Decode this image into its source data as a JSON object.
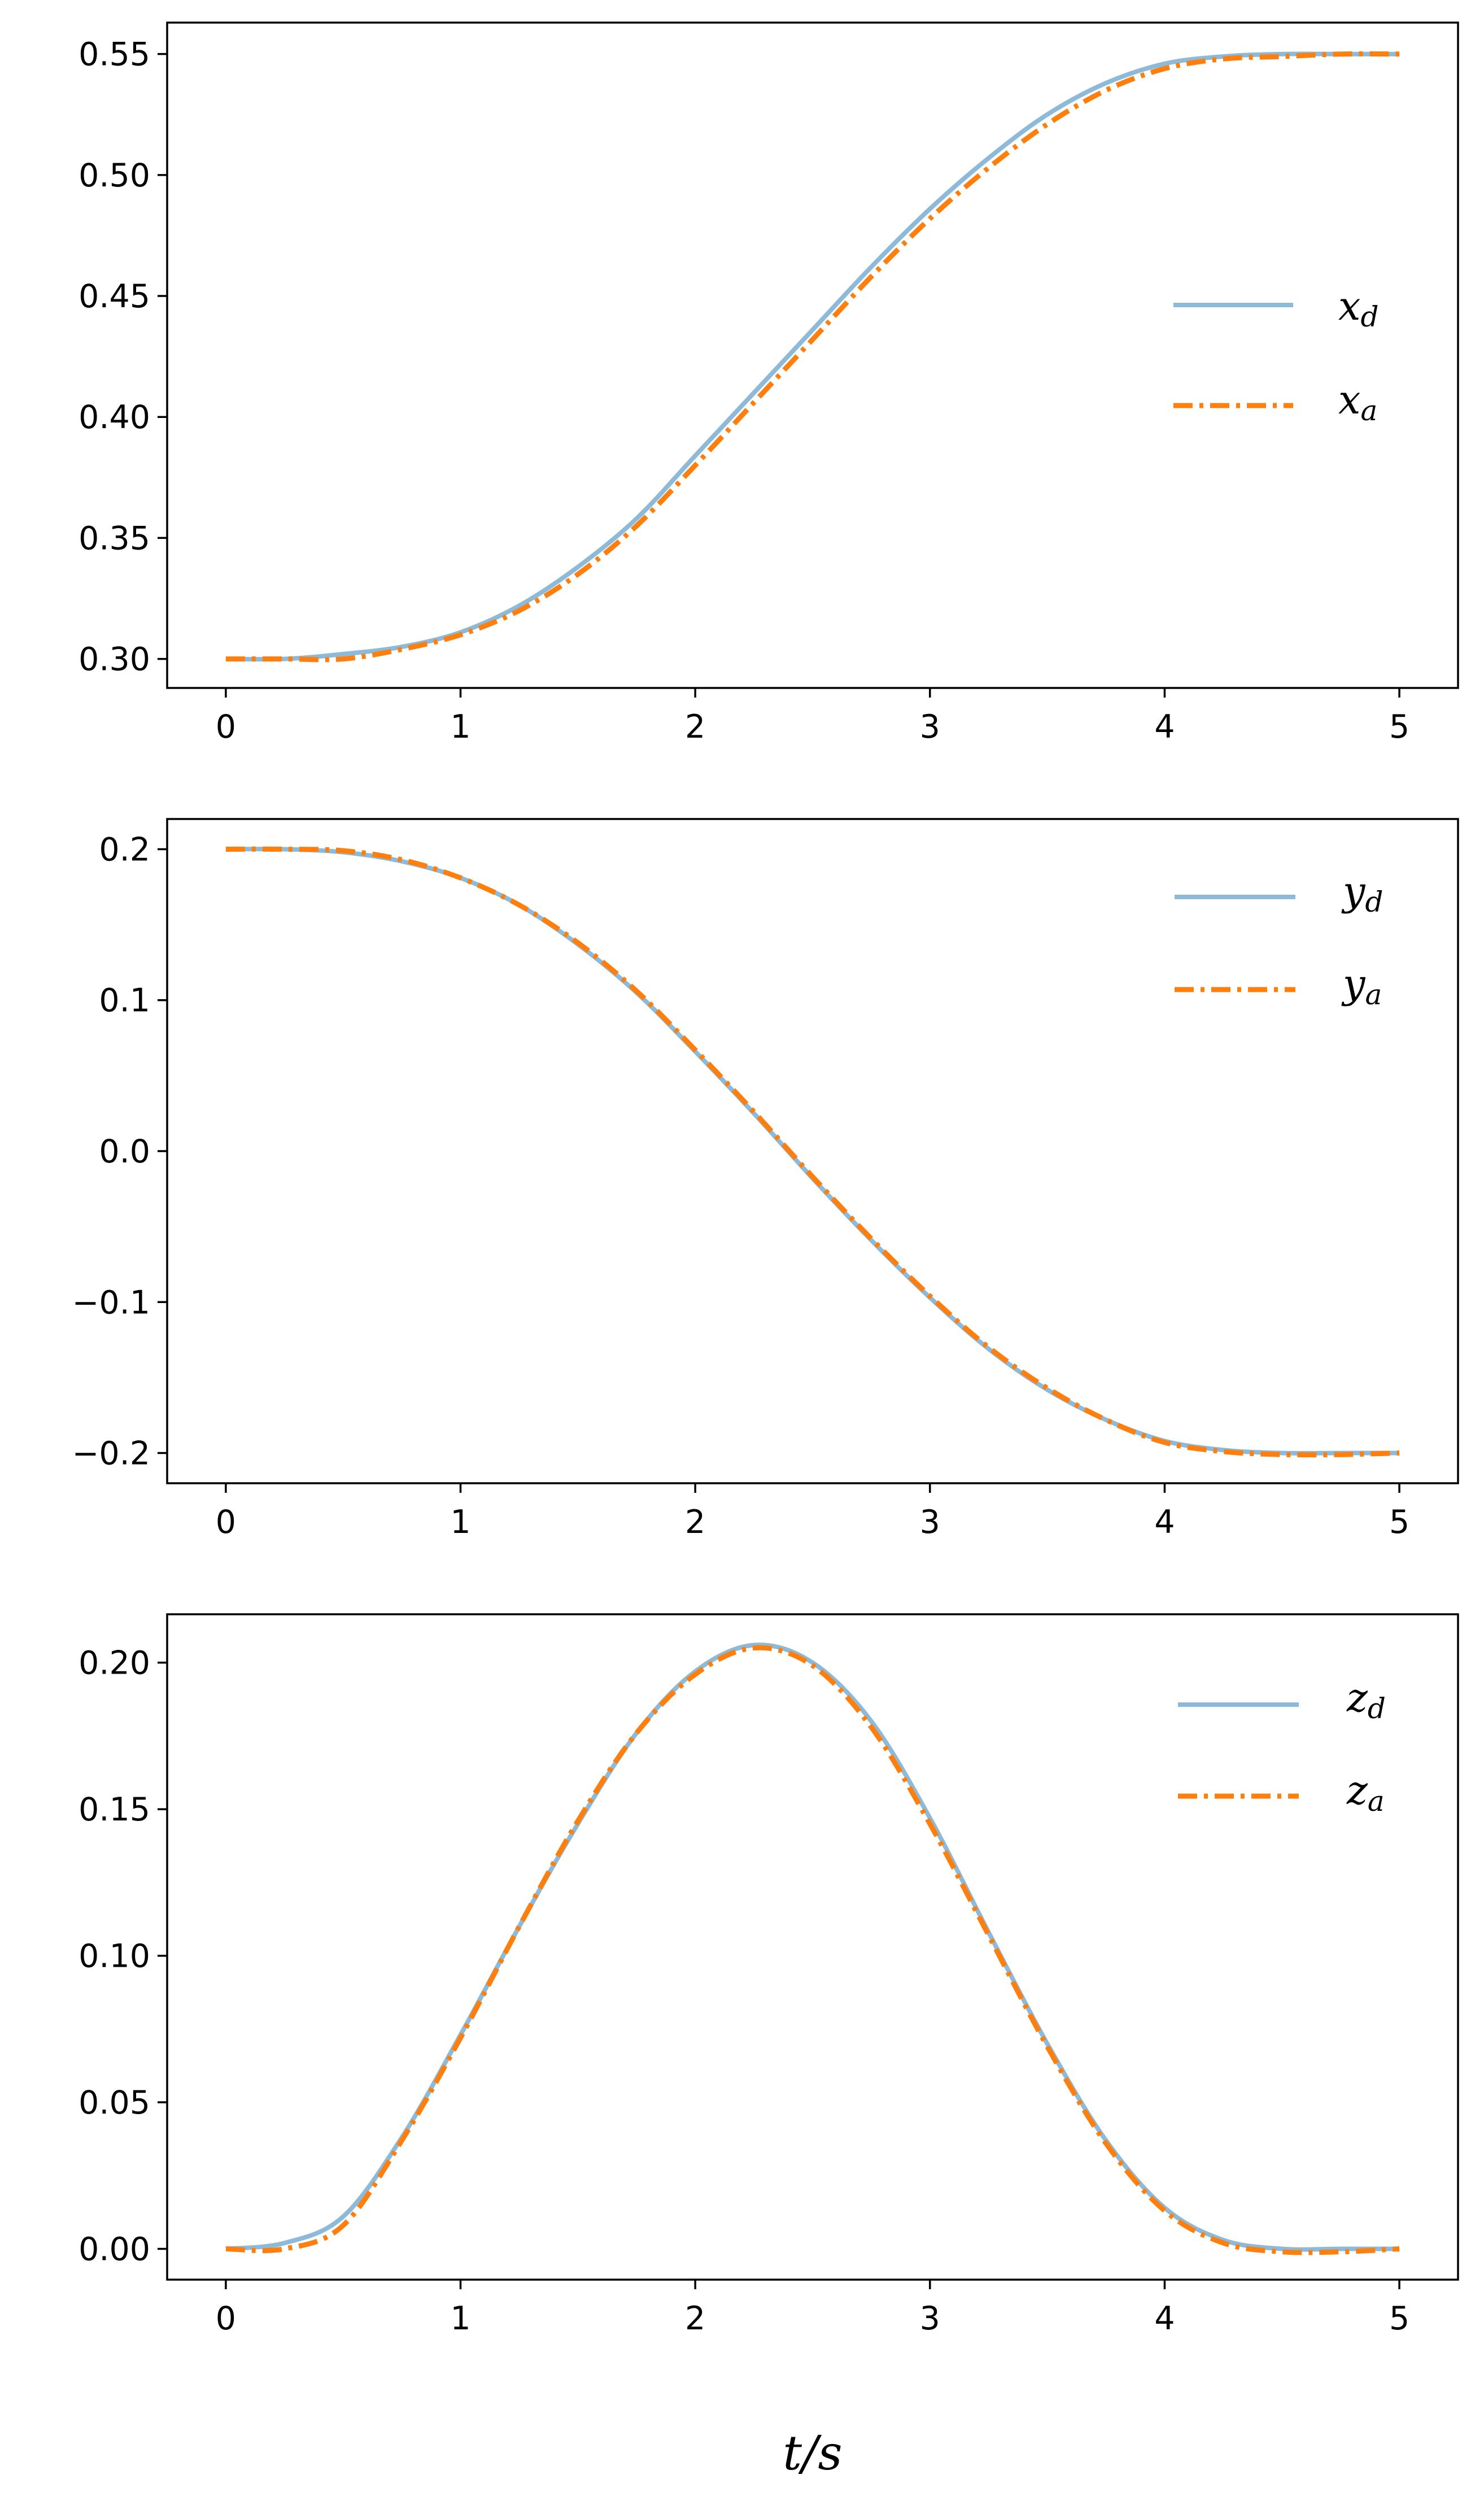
{
  "colors": {
    "desired": "#8ebad9",
    "actual": "#ff7f0e",
    "axes": "#000000",
    "background": "#ffffff"
  },
  "chart_data": [
    {
      "type": "line",
      "xlim": [
        -0.25,
        5.25
      ],
      "ylim": [
        0.288,
        0.563
      ],
      "xticks": [
        "0",
        "1",
        "2",
        "3",
        "4",
        "5"
      ],
      "yticks": [
        "0.30",
        "0.35",
        "0.40",
        "0.45",
        "0.50",
        "0.55"
      ],
      "legend_position": "center-right",
      "grid": false,
      "series": [
        {
          "name": "x",
          "subscript": "d",
          "style": "solid",
          "x": [
            0,
            0.25,
            0.5,
            0.75,
            1,
            1.25,
            1.5,
            1.75,
            2,
            2.25,
            2.5,
            2.75,
            3,
            3.25,
            3.5,
            3.75,
            4,
            4.25,
            4.5,
            4.75,
            5
          ],
          "y": [
            0.3,
            0.3,
            0.302,
            0.305,
            0.311,
            0.322,
            0.338,
            0.358,
            0.384,
            0.41,
            0.436,
            0.462,
            0.486,
            0.507,
            0.525,
            0.538,
            0.546,
            0.549,
            0.55,
            0.55,
            0.55
          ]
        },
        {
          "name": "x",
          "subscript": "a",
          "style": "dashdot",
          "x": [
            0,
            0.25,
            0.5,
            0.75,
            1,
            1.25,
            1.5,
            1.75,
            2,
            2.25,
            2.5,
            2.75,
            3,
            3.25,
            3.5,
            3.75,
            4,
            4.25,
            4.5,
            4.75,
            5
          ],
          "y": [
            0.3,
            0.3,
            0.3,
            0.304,
            0.31,
            0.32,
            0.335,
            0.355,
            0.38,
            0.406,
            0.432,
            0.458,
            0.482,
            0.503,
            0.521,
            0.535,
            0.544,
            0.548,
            0.549,
            0.55,
            0.55
          ]
        }
      ]
    },
    {
      "type": "line",
      "xlim": [
        -0.25,
        5.25
      ],
      "ylim": [
        -0.22,
        0.22
      ],
      "xticks": [
        "0",
        "1",
        "2",
        "3",
        "4",
        "5"
      ],
      "yticks": [
        "0.2",
        "0.1",
        "0.0",
        "−0.1",
        "−0.2"
      ],
      "legend_position": "top-right",
      "grid": false,
      "series": [
        {
          "name": "y",
          "subscript": "d",
          "style": "solid",
          "x": [
            0,
            0.25,
            0.5,
            0.75,
            1,
            1.25,
            1.5,
            1.75,
            2,
            2.25,
            2.5,
            2.75,
            3,
            3.25,
            3.5,
            3.75,
            4,
            4.25,
            4.5,
            4.75,
            5
          ],
          "y": [
            0.2,
            0.2,
            0.198,
            0.192,
            0.181,
            0.163,
            0.137,
            0.105,
            0.066,
            0.025,
            -0.018,
            -0.059,
            -0.097,
            -0.131,
            -0.158,
            -0.178,
            -0.192,
            -0.198,
            -0.2,
            -0.2,
            -0.2
          ]
        },
        {
          "name": "y",
          "subscript": "a",
          "style": "dashdot",
          "x": [
            0,
            0.25,
            0.5,
            0.75,
            1,
            1.25,
            1.5,
            1.75,
            2,
            2.25,
            2.5,
            2.75,
            3,
            3.25,
            3.5,
            3.75,
            4,
            4.25,
            4.5,
            4.75,
            5
          ],
          "y": [
            0.2,
            0.2,
            0.199,
            0.193,
            0.181,
            0.163,
            0.138,
            0.106,
            0.067,
            0.026,
            -0.017,
            -0.058,
            -0.096,
            -0.13,
            -0.157,
            -0.178,
            -0.193,
            -0.199,
            -0.201,
            -0.201,
            -0.2
          ]
        }
      ]
    },
    {
      "type": "line",
      "xlim": [
        -0.25,
        5.25
      ],
      "ylim": [
        -0.0105,
        0.2165
      ],
      "xticks": [
        "0",
        "1",
        "2",
        "3",
        "4",
        "5"
      ],
      "yticks": [
        "0.00",
        "0.05",
        "0.10",
        "0.15",
        "0.20"
      ],
      "legend_position": "top-right",
      "grid": false,
      "xlabel": "t/s",
      "series": [
        {
          "name": "z",
          "subscript": "d",
          "style": "solid",
          "x": [
            0,
            0.25,
            0.5,
            0.75,
            1,
            1.25,
            1.5,
            1.75,
            2,
            2.25,
            2.5,
            2.75,
            3,
            3.25,
            3.5,
            3.75,
            4,
            4.25,
            4.5,
            4.75,
            5
          ],
          "y": [
            0,
            0.002,
            0.011,
            0.038,
            0.073,
            0.11,
            0.145,
            0.176,
            0.197,
            0.206,
            0.2,
            0.18,
            0.147,
            0.108,
            0.07,
            0.037,
            0.014,
            0.003,
            0,
            0,
            0
          ]
        },
        {
          "name": "z",
          "subscript": "a",
          "style": "dashdot",
          "x": [
            0,
            0.25,
            0.5,
            0.75,
            1,
            1.25,
            1.5,
            1.75,
            2,
            2.25,
            2.5,
            2.75,
            3,
            3.25,
            3.5,
            3.75,
            4,
            4.25,
            4.5,
            4.75,
            5
          ],
          "y": [
            0,
            0,
            0.008,
            0.037,
            0.072,
            0.11,
            0.146,
            0.176,
            0.196,
            0.205,
            0.199,
            0.178,
            0.145,
            0.107,
            0.069,
            0.036,
            0.013,
            0.002,
            -0.001,
            -0.001,
            0
          ]
        }
      ]
    }
  ]
}
